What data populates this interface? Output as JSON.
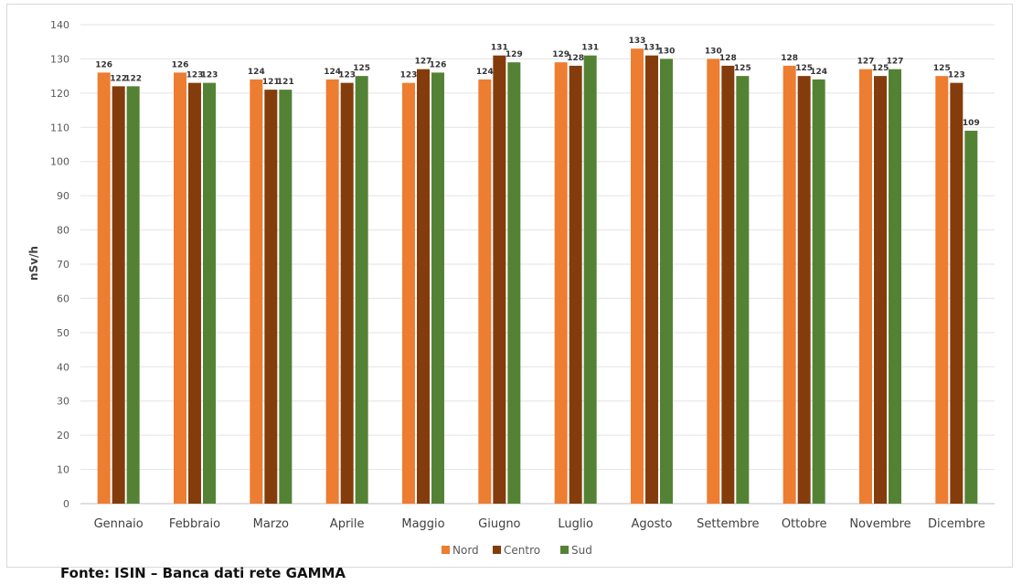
{
  "chart_data": {
    "type": "bar",
    "title": "",
    "xlabel": "",
    "ylabel": "nSv/h",
    "ylim": [
      0,
      140
    ],
    "yticks": [
      0,
      10,
      20,
      30,
      40,
      50,
      60,
      70,
      80,
      90,
      100,
      110,
      120,
      130,
      140
    ],
    "grid": true,
    "legend_position": "bottom",
    "categories": [
      "Gennaio",
      "Febbraio",
      "Marzo",
      "Aprile",
      "Maggio",
      "Giugno",
      "Luglio",
      "Agosto",
      "Settembre",
      "Ottobre",
      "Novembre",
      "Dicembre"
    ],
    "series": [
      {
        "name": "Nord",
        "color": "#ED7D31",
        "values": [
          126,
          126,
          124,
          124,
          123,
          124,
          129,
          133,
          130,
          128,
          127,
          125
        ]
      },
      {
        "name": "Centro",
        "color": "#843C0C",
        "values": [
          122,
          123,
          121,
          123,
          127,
          131,
          128,
          131,
          128,
          125,
          125,
          123
        ]
      },
      {
        "name": "Sud",
        "color": "#548235",
        "values": [
          122,
          123,
          121,
          125,
          126,
          129,
          131,
          130,
          125,
          124,
          127,
          109
        ]
      }
    ]
  },
  "source_note": "Fonte: ISIN – Banca dati rete GAMMA"
}
